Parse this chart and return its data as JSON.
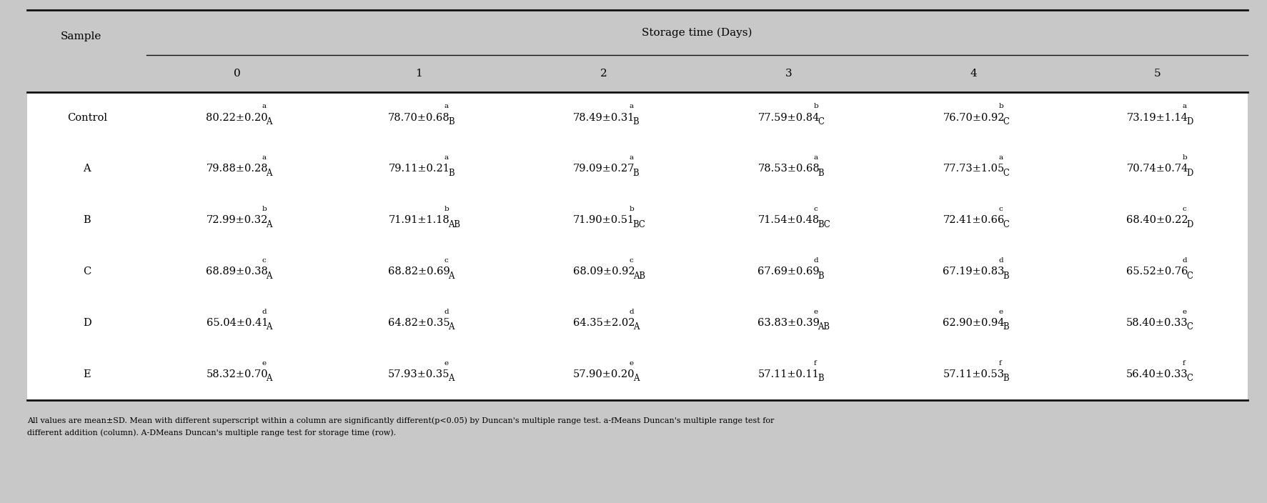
{
  "title": "Storage time (Days)",
  "col_header_sample": "Sample",
  "col_headers": [
    "0",
    "1",
    "2",
    "3",
    "4",
    "5"
  ],
  "row_labels": [
    "Control",
    "A",
    "B",
    "C",
    "D",
    "E"
  ],
  "cells_main": [
    [
      "80.22±0.20",
      "78.70±0.68",
      "78.49±0.31",
      "77.59±0.84",
      "76.70±0.92",
      "73.19±1.14"
    ],
    [
      "79.88±0.28",
      "79.11±0.21",
      "79.09±0.27",
      "78.53±0.68",
      "77.73±1.05",
      "70.74±0.74"
    ],
    [
      "72.99±0.32",
      "71.91±1.18",
      "71.90±0.51",
      "71.54±0.48",
      "72.41±0.66",
      "68.40±0.22"
    ],
    [
      "68.89±0.38",
      "68.82±0.69",
      "68.09±0.92",
      "67.69±0.69",
      "67.19±0.83",
      "65.52±0.76"
    ],
    [
      "65.04±0.41",
      "64.82±0.35",
      "64.35±2.02",
      "63.83±0.39",
      "62.90±0.94",
      "58.40±0.33"
    ],
    [
      "58.32±0.70",
      "57.93±0.35",
      "57.90±0.20",
      "57.11±0.11",
      "57.11±0.53",
      "56.40±0.33"
    ]
  ],
  "cells_sup": [
    [
      "a",
      "a",
      "a",
      "b",
      "b",
      "a"
    ],
    [
      "a",
      "a",
      "a",
      "a",
      "a",
      "b"
    ],
    [
      "b",
      "b",
      "b",
      "c",
      "c",
      "c"
    ],
    [
      "c",
      "c",
      "c",
      "d",
      "d",
      "d"
    ],
    [
      "d",
      "d",
      "d",
      "e",
      "e",
      "e"
    ],
    [
      "e",
      "e",
      "e",
      "f",
      "f",
      "f"
    ]
  ],
  "cells_sub": [
    [
      "A",
      "B",
      "B",
      "C",
      "C",
      "D"
    ],
    [
      "A",
      "B",
      "B",
      "B",
      "C",
      "D"
    ],
    [
      "A",
      "AB",
      "BC",
      "BC",
      "C",
      "D"
    ],
    [
      "A",
      "A",
      "AB",
      "B",
      "B",
      "C"
    ],
    [
      "A",
      "A",
      "A",
      "AB",
      "B",
      "C"
    ],
    [
      "A",
      "A",
      "A",
      "B",
      "B",
      "C"
    ]
  ],
  "footnote_line1": "All values are mean±SD. Mean with different superscript within a column are significantly different(p<0.05) by Duncan's multiple range test. a-fMeans Duncan's multiple range test for",
  "footnote_line2": "different addition (column). A-DMeans Duncan's multiple range test for storage time (row).",
  "bg_color": "#c8c8c8",
  "white": "#ffffff",
  "text_color": "#000000",
  "line_color": "#111111",
  "fs_main": 10.5,
  "fs_header": 11.0,
  "fs_sup": 7.5,
  "fs_sub": 9.5,
  "fs_footnote": 8.0,
  "lw_thick": 2.0,
  "lw_thin": 1.0
}
